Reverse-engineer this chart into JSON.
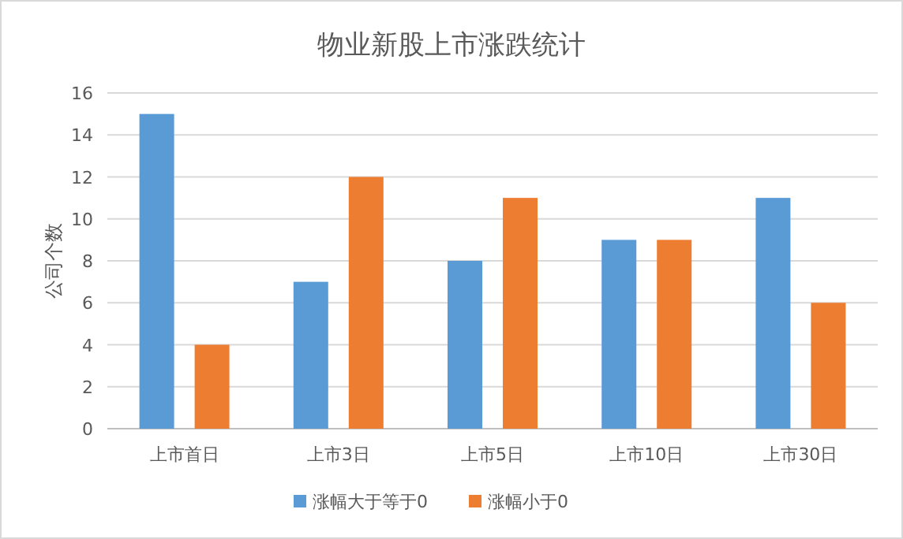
{
  "chart_data": {
    "type": "bar",
    "title": "物业新股上市涨跌统计",
    "ylabel": "公司个数",
    "categories": [
      "上市首日",
      "上市3日",
      "上市5日",
      "上市10日",
      "上市30日"
    ],
    "series": [
      {
        "name": "涨幅大于等于0",
        "color": "#5b9bd5",
        "values": [
          15,
          7,
          8,
          9,
          11
        ]
      },
      {
        "name": "涨幅小于0",
        "color": "#ed7d31",
        "values": [
          4,
          12,
          11,
          9,
          6
        ]
      }
    ],
    "ylim": [
      0,
      16
    ],
    "yticks": [
      0,
      2,
      4,
      6,
      8,
      10,
      12,
      14,
      16
    ],
    "grid": "y",
    "legend": "bottom"
  }
}
